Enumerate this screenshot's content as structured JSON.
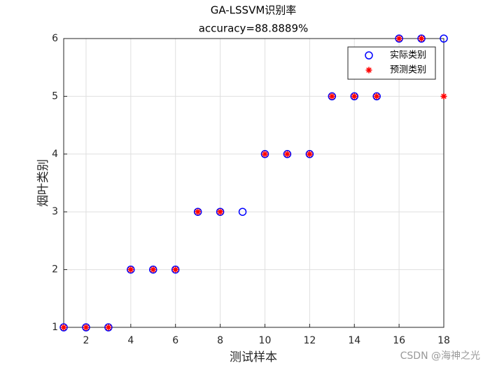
{
  "chart_data": {
    "type": "scatter",
    "title": "GA-LSSVM识别率",
    "subtitle": "accuracy=88.8889%",
    "xlabel": "测试样本",
    "ylabel": "烟叶类别",
    "x": [
      1,
      2,
      3,
      4,
      5,
      6,
      7,
      8,
      9,
      10,
      11,
      12,
      13,
      14,
      15,
      16,
      17,
      18
    ],
    "series": [
      {
        "name": "实际类别",
        "color": "#0000ff",
        "marker": "circle",
        "values": [
          1,
          1,
          1,
          2,
          2,
          2,
          3,
          3,
          3,
          4,
          4,
          4,
          5,
          5,
          5,
          6,
          6,
          6
        ]
      },
      {
        "name": "预测类别",
        "color": "#ff0000",
        "marker": "asterisk",
        "values": [
          1,
          1,
          1,
          2,
          2,
          2,
          3,
          3,
          null,
          4,
          4,
          4,
          5,
          5,
          5,
          6,
          6,
          5
        ]
      }
    ],
    "xlim": [
      1,
      18
    ],
    "xticks": [
      2,
      4,
      6,
      8,
      10,
      12,
      14,
      16,
      18
    ],
    "ylim": [
      1,
      6
    ],
    "yticks": [
      1,
      2,
      3,
      4,
      5,
      6
    ],
    "grid": true,
    "legend": "upper right"
  },
  "watermark": "CSDN @海神之光"
}
